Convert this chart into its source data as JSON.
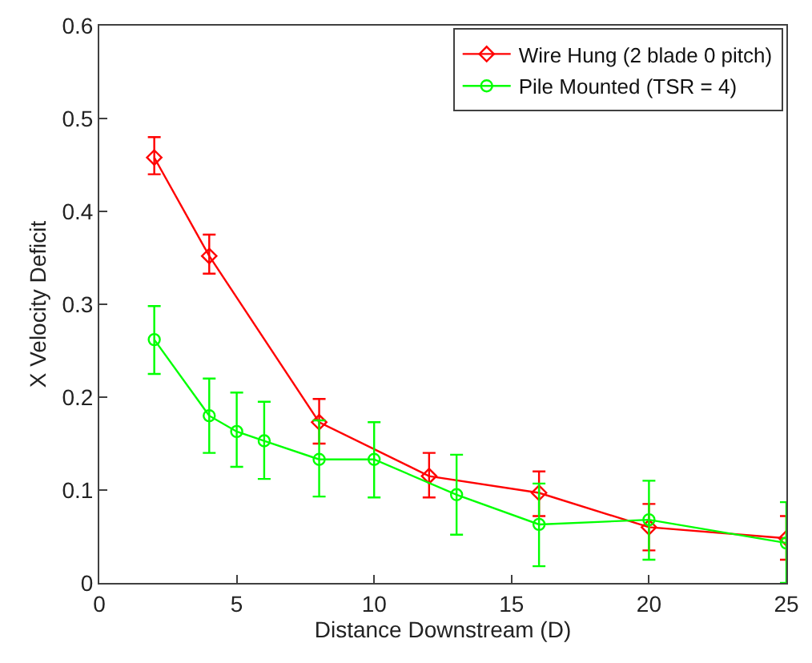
{
  "chart_data": {
    "type": "line",
    "xlabel": "Distance Downstream (D)",
    "ylabel": "X Velocity Deficit",
    "xlim": [
      0,
      25
    ],
    "xticks": [
      0,
      5,
      10,
      15,
      20,
      25
    ],
    "ylim": [
      0,
      0.6
    ],
    "yticks": [
      0,
      0.1,
      0.2,
      0.3,
      0.4,
      0.5,
      0.6
    ],
    "legend": "top right",
    "series": [
      {
        "name": "Wire Hung (2 blade 0 pitch)",
        "color": "#ff0000",
        "marker": "diamond",
        "x": [
          2,
          4,
          8,
          12,
          16,
          20,
          25
        ],
        "values": [
          0.458,
          0.352,
          0.173,
          0.115,
          0.097,
          0.06,
          0.048
        ],
        "errors": [
          [
            0.44,
            0.48
          ],
          [
            0.333,
            0.375
          ],
          [
            0.15,
            0.198
          ],
          [
            0.092,
            0.14
          ],
          [
            0.072,
            0.12
          ],
          [
            0.035,
            0.085
          ],
          [
            0.025,
            0.072
          ]
        ]
      },
      {
        "name": "Pile Mounted (TSR = 4)",
        "color": "#00ff00",
        "marker": "circle",
        "x": [
          2,
          4,
          5,
          6,
          8,
          10,
          13,
          16,
          20,
          25
        ],
        "values": [
          0.262,
          0.18,
          0.163,
          0.153,
          0.133,
          0.133,
          0.095,
          0.063,
          0.068,
          0.043
        ],
        "errors": [
          [
            0.225,
            0.298
          ],
          [
            0.14,
            0.22
          ],
          [
            0.125,
            0.205
          ],
          [
            0.112,
            0.195
          ],
          [
            0.093,
            0.175
          ],
          [
            0.092,
            0.173
          ],
          [
            0.052,
            0.138
          ],
          [
            0.018,
            0.107
          ],
          [
            0.025,
            0.11
          ],
          [
            0.0,
            0.087
          ]
        ]
      }
    ]
  }
}
